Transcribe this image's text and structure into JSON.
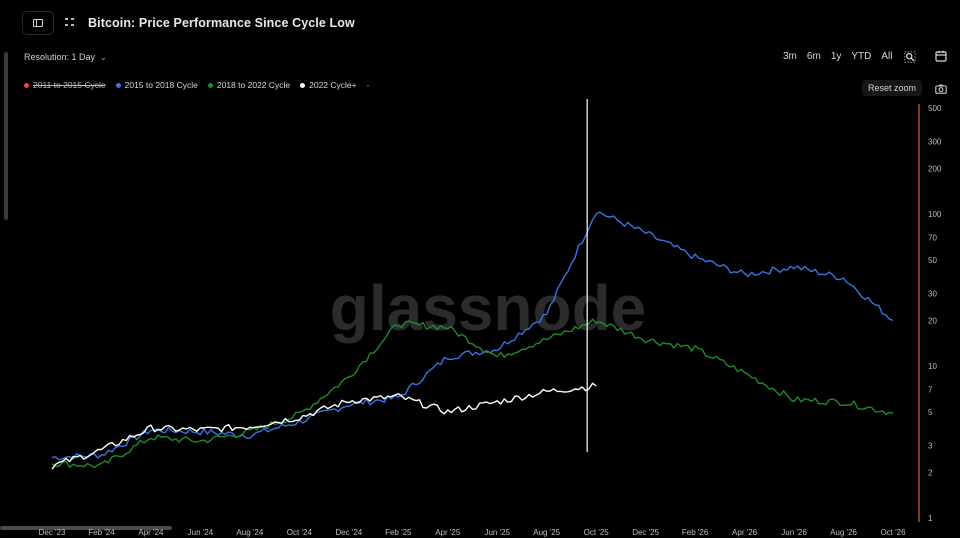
{
  "header": {
    "title": "Bitcoin: Price Performance Since Cycle Low",
    "resolution_label": "Resolution: 1 Day"
  },
  "range_buttons": [
    "3m",
    "6m",
    "1y",
    "YTD",
    "All"
  ],
  "reset_zoom_label": "Reset zoom",
  "icons": [
    "sidebar-toggle-icon",
    "drag-handle-icon",
    "chevron-down-icon",
    "zoom-icon",
    "calendar-icon",
    "camera-icon"
  ],
  "chart_data": {
    "type": "line",
    "title": "Bitcoin: Price Performance Since Cycle Low",
    "watermark": "glassnode",
    "x_tick_labels": [
      "Dec '23",
      "Feb '24",
      "Apr '24",
      "Jun '24",
      "Aug '24",
      "Oct '24",
      "Dec '24",
      "Feb '25",
      "Apr '25",
      "Jun '25",
      "Aug '25",
      "Oct '25",
      "Dec '25",
      "Feb '26",
      "Apr '26",
      "Jun '26",
      "Aug '26",
      "Oct '26"
    ],
    "y_scale": "log",
    "y_tick_labels": [
      "1",
      "2",
      "3",
      "5",
      "7",
      "10",
      "20",
      "30",
      "50",
      "70",
      "100",
      "200",
      "300",
      "500"
    ],
    "ylim": [
      1,
      500
    ],
    "legend": [
      {
        "name": "2011 to 2015 Cycle",
        "color": "#e74c3c",
        "hidden": true
      },
      {
        "name": "2015 to 2018 Cycle",
        "color": "#3b73e0",
        "hidden": false
      },
      {
        "name": "2018 to 2022 Cycle",
        "color": "#1f8a2b",
        "hidden": false
      },
      {
        "name": "2022 Cycle+",
        "color": "#ffffff",
        "hidden": false
      },
      {
        "name": "-",
        "color": "#888888",
        "hidden": false
      }
    ],
    "crosshair_x": "Oct '25",
    "series": [
      {
        "name": "2015 to 2018 Cycle",
        "color": "#3b73e0",
        "points": [
          [
            "Dec '23",
            2.5
          ],
          [
            "Feb '24",
            2.6
          ],
          [
            "Apr '24",
            3.8
          ],
          [
            "Jun '24",
            3.7
          ],
          [
            "Aug '24",
            3.5
          ],
          [
            "Oct '24",
            4.3
          ],
          [
            "Dec '24",
            5.6
          ],
          [
            "Feb '25",
            6.2
          ],
          [
            "Apr '25",
            11.5
          ],
          [
            "Jun '25",
            13
          ],
          [
            "Aug '25",
            22
          ],
          [
            "Oct '25",
            105
          ],
          [
            "Dec '25",
            75
          ],
          [
            "Feb '26",
            52
          ],
          [
            "Apr '26",
            40
          ],
          [
            "Jun '26",
            45
          ],
          [
            "Aug '26",
            38
          ],
          [
            "Oct '26",
            20
          ]
        ]
      },
      {
        "name": "2018 to 2022 Cycle",
        "color": "#1f8a2b",
        "points": [
          [
            "Dec '23",
            2.3
          ],
          [
            "Feb '24",
            2.2
          ],
          [
            "Apr '24",
            3.4
          ],
          [
            "Jun '24",
            3.2
          ],
          [
            "Aug '24",
            3.7
          ],
          [
            "Oct '24",
            4.8
          ],
          [
            "Dec '24",
            8.5
          ],
          [
            "Feb '25",
            19
          ],
          [
            "Apr '25",
            18
          ],
          [
            "Jun '25",
            11.5
          ],
          [
            "Aug '25",
            15
          ],
          [
            "Oct '25",
            20
          ],
          [
            "Dec '25",
            15
          ],
          [
            "Feb '26",
            13
          ],
          [
            "Apr '26",
            9
          ],
          [
            "Jun '26",
            6
          ],
          [
            "Aug '26",
            5.8
          ],
          [
            "Oct '26",
            4.9
          ]
        ]
      },
      {
        "name": "2022 Cycle+",
        "color": "#ffffff",
        "points": [
          [
            "Dec '23",
            2.2
          ],
          [
            "Feb '24",
            2.8
          ],
          [
            "Apr '24",
            3.9
          ],
          [
            "Jun '24",
            3.8
          ],
          [
            "Aug '24",
            4.0
          ],
          [
            "Oct '24",
            4.6
          ],
          [
            "Dec '24",
            5.9
          ],
          [
            "Feb '25",
            6.3
          ],
          [
            "Apr '25",
            5.0
          ],
          [
            "Jun '25",
            5.8
          ],
          [
            "Aug '25",
            6.8
          ],
          [
            "Oct '25",
            7.4
          ]
        ]
      }
    ]
  }
}
